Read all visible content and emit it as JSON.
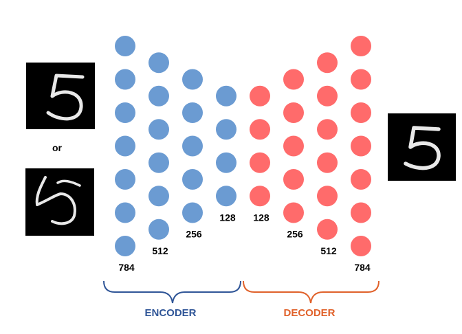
{
  "inputs": {
    "or_label": "or",
    "top_digit": "5",
    "bottom_digit": "5"
  },
  "output": {
    "digit": "5"
  },
  "encoder": {
    "label": "ENCODER",
    "color": "#2f5597",
    "node_color": "#6b9bd2",
    "layers": [
      {
        "size_label": "784",
        "nodes": 7
      },
      {
        "size_label": "512",
        "nodes": 6
      },
      {
        "size_label": "256",
        "nodes": 5
      },
      {
        "size_label": "128",
        "nodes": 4
      }
    ]
  },
  "decoder": {
    "label": "DECODER",
    "color": "#e0612a",
    "node_color": "#ff6b6b",
    "layers": [
      {
        "size_label": "128",
        "nodes": 4
      },
      {
        "size_label": "256",
        "nodes": 5
      },
      {
        "size_label": "512",
        "nodes": 6
      },
      {
        "size_label": "784",
        "nodes": 7
      }
    ]
  }
}
